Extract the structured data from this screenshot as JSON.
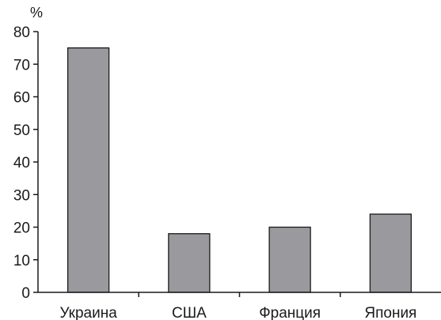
{
  "chart_data": {
    "type": "bar",
    "title": "",
    "xlabel": "",
    "ylabel": "%",
    "categories": [
      "Украина",
      "США",
      "Франция",
      "Япония"
    ],
    "values": [
      75,
      18,
      20,
      24
    ],
    "ylim": [
      0,
      80
    ],
    "yticks": [
      0,
      10,
      20,
      30,
      40,
      50,
      60,
      70,
      80
    ],
    "grid": false,
    "legend": "none",
    "bar_color": "#9a9a9e",
    "bar_edge_color": "#1a1a1a"
  }
}
